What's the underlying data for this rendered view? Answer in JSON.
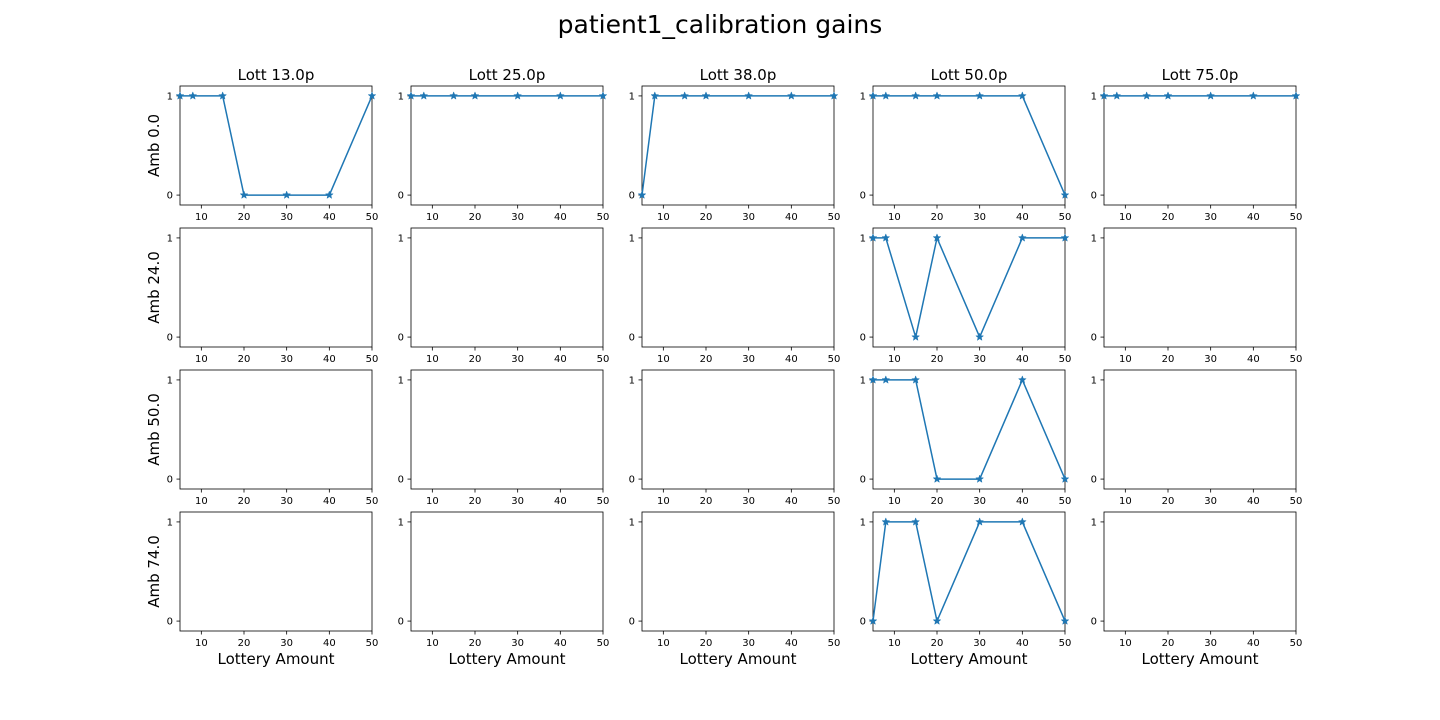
{
  "title": "patient1_calibration gains",
  "chart_data": {
    "type": "line",
    "layout": "grid",
    "columns": [
      "Lott 13.0p",
      "Lott 25.0p",
      "Lott 38.0p",
      "Lott 50.0p",
      "Lott 75.0p"
    ],
    "rows": [
      "Amb 0.0",
      "Amb 24.0",
      "Amb 50.0",
      "Amb 74.0"
    ],
    "xlabel": "Lottery Amount",
    "x": [
      5,
      8,
      15,
      20,
      30,
      40,
      50
    ],
    "xlim": [
      5,
      50
    ],
    "ylim": [
      -0.1,
      1.1
    ],
    "xticks": [
      10,
      20,
      30,
      40,
      50
    ],
    "yticks": [
      0,
      1
    ],
    "marker": "star",
    "color": "#1f77b4",
    "panels": [
      [
        {
          "values": [
            1,
            1,
            1,
            0,
            0,
            0,
            1
          ]
        },
        {
          "values": [
            1,
            1,
            1,
            1,
            1,
            1,
            1
          ]
        },
        {
          "values": [
            0,
            1,
            1,
            1,
            1,
            1,
            1
          ]
        },
        {
          "values": [
            1,
            1,
            1,
            1,
            1,
            1,
            0
          ]
        },
        {
          "values": [
            1,
            1,
            1,
            1,
            1,
            1,
            1
          ]
        }
      ],
      [
        {
          "values": []
        },
        {
          "values": []
        },
        {
          "values": []
        },
        {
          "values": [
            1,
            1,
            0,
            1,
            0,
            1,
            1
          ]
        },
        {
          "values": []
        }
      ],
      [
        {
          "values": []
        },
        {
          "values": []
        },
        {
          "values": []
        },
        {
          "values": [
            1,
            1,
            1,
            0,
            0,
            1,
            0
          ]
        },
        {
          "values": []
        }
      ],
      [
        {
          "values": []
        },
        {
          "values": []
        },
        {
          "values": []
        },
        {
          "values": [
            0,
            1,
            1,
            0,
            1,
            1,
            0
          ]
        },
        {
          "values": []
        }
      ]
    ]
  }
}
